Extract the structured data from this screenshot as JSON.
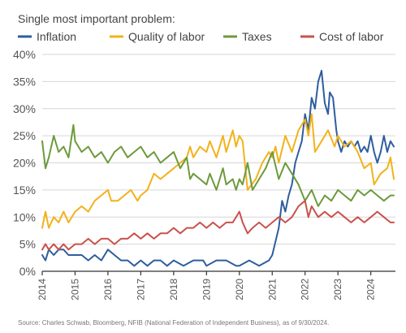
{
  "chart_data": {
    "type": "line",
    "legend_title": "Single most important problem:",
    "legend_placement": "top-left",
    "grid": true,
    "ylim": [
      0,
      40
    ],
    "y_ticks": [
      0,
      5,
      10,
      15,
      20,
      25,
      30,
      35,
      40
    ],
    "y_tick_labels": [
      "0%",
      "5%",
      "10%",
      "15%",
      "20%",
      "25%",
      "30%",
      "35%",
      "40%"
    ],
    "xlim": [
      2014,
      2024.75
    ],
    "x_ticks": [
      2014,
      2015,
      2016,
      2017,
      2018,
      2019,
      2020,
      2021,
      2022,
      2023,
      2024
    ],
    "x_tick_labels": [
      "2014",
      "2015",
      "2016",
      "2017",
      "2018",
      "2019",
      "2020",
      "2021",
      "2022",
      "2023",
      "2024"
    ],
    "source": "Source: Charles Schwab, Bloomberg, NFIB (National Federation of Independent Business), as of 9/30/2024.",
    "series": [
      {
        "name": "Inflation",
        "color": "#2e5e9e",
        "points": [
          [
            2014,
            3
          ],
          [
            2014.1,
            2
          ],
          [
            2014.2,
            4
          ],
          [
            2014.35,
            3
          ],
          [
            2014.5,
            4
          ],
          [
            2014.65,
            4
          ],
          [
            2014.8,
            3
          ],
          [
            2015,
            3
          ],
          [
            2015.2,
            3
          ],
          [
            2015.4,
            2
          ],
          [
            2015.6,
            3
          ],
          [
            2015.8,
            2
          ],
          [
            2016,
            4
          ],
          [
            2016.2,
            3
          ],
          [
            2016.4,
            2
          ],
          [
            2016.6,
            2
          ],
          [
            2016.8,
            1
          ],
          [
            2017,
            2
          ],
          [
            2017.2,
            1
          ],
          [
            2017.4,
            2
          ],
          [
            2017.6,
            2
          ],
          [
            2017.8,
            1
          ],
          [
            2018,
            2
          ],
          [
            2018.3,
            1
          ],
          [
            2018.6,
            2
          ],
          [
            2018.9,
            2
          ],
          [
            2019,
            1
          ],
          [
            2019.3,
            2
          ],
          [
            2019.6,
            2
          ],
          [
            2019.9,
            1
          ],
          [
            2020,
            1
          ],
          [
            2020.3,
            2
          ],
          [
            2020.6,
            1
          ],
          [
            2020.9,
            2
          ],
          [
            2021,
            3
          ],
          [
            2021.2,
            8
          ],
          [
            2021.3,
            13
          ],
          [
            2021.4,
            11
          ],
          [
            2021.5,
            14
          ],
          [
            2021.6,
            16
          ],
          [
            2021.7,
            20
          ],
          [
            2021.8,
            22
          ],
          [
            2021.9,
            24
          ],
          [
            2022,
            29
          ],
          [
            2022.1,
            26
          ],
          [
            2022.2,
            32
          ],
          [
            2022.3,
            30
          ],
          [
            2022.4,
            35
          ],
          [
            2022.5,
            37
          ],
          [
            2022.6,
            31
          ],
          [
            2022.7,
            29
          ],
          [
            2022.75,
            33
          ],
          [
            2022.85,
            32
          ],
          [
            2022.95,
            26
          ],
          [
            2023,
            24
          ],
          [
            2023.1,
            22
          ],
          [
            2023.2,
            24
          ],
          [
            2023.3,
            23
          ],
          [
            2023.4,
            24
          ],
          [
            2023.5,
            23
          ],
          [
            2023.6,
            24
          ],
          [
            2023.7,
            22
          ],
          [
            2023.8,
            23
          ],
          [
            2023.9,
            22
          ],
          [
            2024,
            25
          ],
          [
            2024.1,
            22
          ],
          [
            2024.2,
            20
          ],
          [
            2024.3,
            22
          ],
          [
            2024.4,
            25
          ],
          [
            2024.5,
            22
          ],
          [
            2024.6,
            24
          ],
          [
            2024.7,
            23
          ]
        ]
      },
      {
        "name": "Quality of labor",
        "color": "#f2b21b",
        "points": [
          [
            2014,
            8
          ],
          [
            2014.1,
            11
          ],
          [
            2014.2,
            8
          ],
          [
            2014.35,
            10
          ],
          [
            2014.5,
            9
          ],
          [
            2014.65,
            11
          ],
          [
            2014.8,
            9
          ],
          [
            2015,
            11
          ],
          [
            2015.2,
            12
          ],
          [
            2015.4,
            11
          ],
          [
            2015.6,
            13
          ],
          [
            2015.8,
            14
          ],
          [
            2016,
            15
          ],
          [
            2016.1,
            13
          ],
          [
            2016.3,
            13
          ],
          [
            2016.5,
            14
          ],
          [
            2016.7,
            15
          ],
          [
            2016.9,
            13
          ],
          [
            2017,
            14
          ],
          [
            2017.2,
            15
          ],
          [
            2017.4,
            18
          ],
          [
            2017.6,
            17
          ],
          [
            2017.8,
            18
          ],
          [
            2018,
            19
          ],
          [
            2018.2,
            20
          ],
          [
            2018.4,
            21
          ],
          [
            2018.5,
            23
          ],
          [
            2018.6,
            21
          ],
          [
            2018.8,
            23
          ],
          [
            2019,
            22
          ],
          [
            2019.1,
            24
          ],
          [
            2019.3,
            21
          ],
          [
            2019.5,
            25
          ],
          [
            2019.6,
            22
          ],
          [
            2019.8,
            26
          ],
          [
            2019.9,
            23
          ],
          [
            2020,
            25
          ],
          [
            2020.1,
            24
          ],
          [
            2020.25,
            15
          ],
          [
            2020.5,
            17
          ],
          [
            2020.7,
            20
          ],
          [
            2020.9,
            22
          ],
          [
            2021,
            21
          ],
          [
            2021.1,
            23
          ],
          [
            2021.2,
            20
          ],
          [
            2021.4,
            25
          ],
          [
            2021.6,
            22
          ],
          [
            2021.8,
            26
          ],
          [
            2022,
            28
          ],
          [
            2022.1,
            25
          ],
          [
            2022.2,
            29
          ],
          [
            2022.3,
            22
          ],
          [
            2022.5,
            24
          ],
          [
            2022.7,
            26
          ],
          [
            2022.9,
            23
          ],
          [
            2023,
            25
          ],
          [
            2023.2,
            23
          ],
          [
            2023.4,
            24
          ],
          [
            2023.6,
            22
          ],
          [
            2023.8,
            19
          ],
          [
            2024,
            20
          ],
          [
            2024.1,
            16
          ],
          [
            2024.3,
            18
          ],
          [
            2024.5,
            19
          ],
          [
            2024.6,
            21
          ],
          [
            2024.7,
            17
          ]
        ]
      },
      {
        "name": "Taxes",
        "color": "#6d9a3c",
        "points": [
          [
            2014,
            24
          ],
          [
            2014.1,
            19
          ],
          [
            2014.2,
            21
          ],
          [
            2014.35,
            25
          ],
          [
            2014.5,
            22
          ],
          [
            2014.65,
            23
          ],
          [
            2014.8,
            21
          ],
          [
            2014.95,
            27
          ],
          [
            2015,
            24
          ],
          [
            2015.2,
            22
          ],
          [
            2015.4,
            23
          ],
          [
            2015.6,
            21
          ],
          [
            2015.8,
            22
          ],
          [
            2016,
            20
          ],
          [
            2016.2,
            22
          ],
          [
            2016.4,
            23
          ],
          [
            2016.6,
            21
          ],
          [
            2016.8,
            22
          ],
          [
            2017,
            23
          ],
          [
            2017.2,
            21
          ],
          [
            2017.4,
            22
          ],
          [
            2017.6,
            20
          ],
          [
            2017.8,
            21
          ],
          [
            2018,
            22
          ],
          [
            2018.2,
            19
          ],
          [
            2018.4,
            21
          ],
          [
            2018.5,
            17
          ],
          [
            2018.6,
            18
          ],
          [
            2018.8,
            17
          ],
          [
            2019,
            16
          ],
          [
            2019.1,
            18
          ],
          [
            2019.3,
            15
          ],
          [
            2019.5,
            19
          ],
          [
            2019.6,
            16
          ],
          [
            2019.8,
            17
          ],
          [
            2019.9,
            15
          ],
          [
            2020,
            17
          ],
          [
            2020.1,
            16
          ],
          [
            2020.25,
            20
          ],
          [
            2020.4,
            15
          ],
          [
            2020.6,
            17
          ],
          [
            2020.8,
            19
          ],
          [
            2021,
            22
          ],
          [
            2021.2,
            17
          ],
          [
            2021.4,
            20
          ],
          [
            2021.6,
            18
          ],
          [
            2021.8,
            16
          ],
          [
            2022,
            13
          ],
          [
            2022.2,
            15
          ],
          [
            2022.4,
            12
          ],
          [
            2022.6,
            14
          ],
          [
            2022.8,
            13
          ],
          [
            2023,
            15
          ],
          [
            2023.2,
            14
          ],
          [
            2023.4,
            13
          ],
          [
            2023.6,
            15
          ],
          [
            2023.8,
            14
          ],
          [
            2024,
            15
          ],
          [
            2024.2,
            14
          ],
          [
            2024.4,
            13
          ],
          [
            2024.6,
            14
          ],
          [
            2024.7,
            14
          ]
        ]
      },
      {
        "name": "Cost of labor",
        "color": "#c8524c",
        "points": [
          [
            2014,
            4
          ],
          [
            2014.1,
            5
          ],
          [
            2014.2,
            4
          ],
          [
            2014.35,
            5
          ],
          [
            2014.5,
            4
          ],
          [
            2014.65,
            5
          ],
          [
            2014.8,
            4
          ],
          [
            2015,
            5
          ],
          [
            2015.2,
            5
          ],
          [
            2015.4,
            6
          ],
          [
            2015.6,
            5
          ],
          [
            2015.8,
            6
          ],
          [
            2016,
            6
          ],
          [
            2016.2,
            5
          ],
          [
            2016.4,
            6
          ],
          [
            2016.6,
            6
          ],
          [
            2016.8,
            7
          ],
          [
            2017,
            6
          ],
          [
            2017.2,
            7
          ],
          [
            2017.4,
            6
          ],
          [
            2017.6,
            7
          ],
          [
            2017.8,
            7
          ],
          [
            2018,
            8
          ],
          [
            2018.2,
            7
          ],
          [
            2018.4,
            8
          ],
          [
            2018.6,
            8
          ],
          [
            2018.8,
            9
          ],
          [
            2019,
            8
          ],
          [
            2019.2,
            9
          ],
          [
            2019.4,
            8
          ],
          [
            2019.6,
            9
          ],
          [
            2019.8,
            9
          ],
          [
            2020,
            11
          ],
          [
            2020.1,
            9
          ],
          [
            2020.25,
            7
          ],
          [
            2020.4,
            8
          ],
          [
            2020.6,
            9
          ],
          [
            2020.8,
            8
          ],
          [
            2021,
            9
          ],
          [
            2021.2,
            10
          ],
          [
            2021.4,
            9
          ],
          [
            2021.6,
            10
          ],
          [
            2021.8,
            12
          ],
          [
            2022,
            13
          ],
          [
            2022.1,
            10
          ],
          [
            2022.2,
            12
          ],
          [
            2022.4,
            10
          ],
          [
            2022.6,
            11
          ],
          [
            2022.8,
            10
          ],
          [
            2023,
            11
          ],
          [
            2023.2,
            10
          ],
          [
            2023.4,
            9
          ],
          [
            2023.6,
            10
          ],
          [
            2023.8,
            9
          ],
          [
            2024,
            10
          ],
          [
            2024.2,
            11
          ],
          [
            2024.4,
            10
          ],
          [
            2024.6,
            9
          ],
          [
            2024.7,
            9
          ]
        ]
      }
    ]
  }
}
